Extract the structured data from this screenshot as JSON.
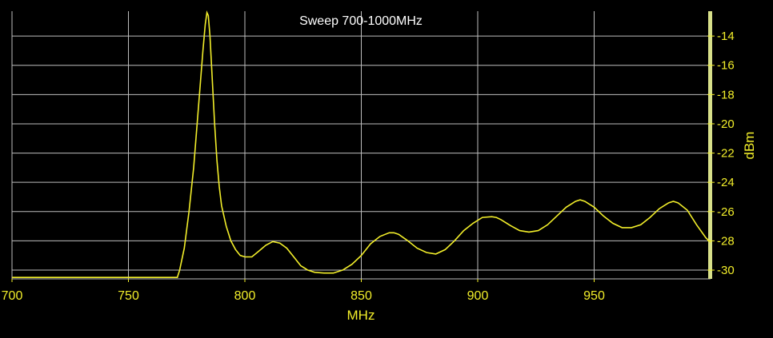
{
  "chart_data": {
    "type": "line",
    "title": "Sweep 700-1000MHz",
    "xlabel": "MHz",
    "ylabel": "dBm",
    "xlim": [
      700,
      1000
    ],
    "ylim": [
      -30.6,
      -12.3
    ],
    "x_ticks": [
      "700",
      "750",
      "800",
      "850",
      "900",
      "950"
    ],
    "x_tick_values": [
      700,
      750,
      800,
      850,
      900,
      950
    ],
    "y_ticks": [
      "-14",
      "-16",
      "-18",
      "-20",
      "-22",
      "-24",
      "-26",
      "-28",
      "-30"
    ],
    "y_tick_values": [
      -14,
      -16,
      -18,
      -20,
      -22,
      -24,
      -26,
      -28,
      -30
    ],
    "grid": true,
    "colors": {
      "background": "#000000",
      "grid": "#bdbdbd",
      "line": "#f2ee2a",
      "text": "#f2ee2a",
      "title": "#ffffff",
      "right_bar": "#d8e08a"
    },
    "series": [
      {
        "x": [
          700,
          771,
          772,
          774,
          776,
          778,
          779,
          780,
          781,
          782,
          783,
          783.7,
          784.3,
          785,
          786,
          787,
          788,
          789,
          790,
          792,
          794,
          796,
          798,
          800,
          803,
          806,
          809,
          812,
          815,
          818,
          821,
          824,
          827,
          830,
          834,
          838,
          842,
          846,
          850,
          854,
          858,
          862,
          864,
          866,
          870,
          874,
          878,
          882,
          886,
          890,
          894,
          898,
          902,
          906,
          908,
          910,
          914,
          918,
          922,
          926,
          930,
          934,
          938,
          942,
          944,
          946,
          950,
          954,
          958,
          962,
          966,
          970,
          974,
          978,
          982,
          984,
          986,
          990,
          994,
          998,
          1000
        ],
        "y": [
          -30.5,
          -30.5,
          -30.0,
          -28.5,
          -26.0,
          -23.0,
          -21.0,
          -19.0,
          -17.0,
          -15.0,
          -13.2,
          -12.4,
          -12.6,
          -14.0,
          -17.0,
          -20.0,
          -22.5,
          -24.3,
          -25.6,
          -27.0,
          -28.0,
          -28.6,
          -29.0,
          -29.1,
          -29.1,
          -28.7,
          -28.3,
          -28.05,
          -28.15,
          -28.5,
          -29.1,
          -29.7,
          -30.0,
          -30.15,
          -30.2,
          -30.2,
          -30.0,
          -29.6,
          -29.0,
          -28.2,
          -27.7,
          -27.45,
          -27.45,
          -27.55,
          -28.0,
          -28.5,
          -28.8,
          -28.9,
          -28.6,
          -28.0,
          -27.3,
          -26.8,
          -26.4,
          -26.35,
          -26.4,
          -26.55,
          -26.95,
          -27.3,
          -27.4,
          -27.3,
          -26.9,
          -26.3,
          -25.7,
          -25.3,
          -25.2,
          -25.3,
          -25.7,
          -26.3,
          -26.8,
          -27.1,
          -27.1,
          -26.9,
          -26.4,
          -25.8,
          -25.4,
          -25.3,
          -25.4,
          -25.9,
          -26.9,
          -27.8,
          -28.1
        ]
      }
    ]
  }
}
